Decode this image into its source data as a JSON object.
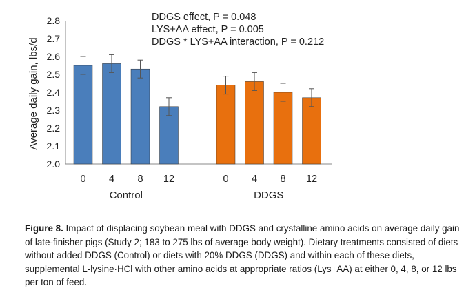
{
  "chart_data": {
    "type": "bar",
    "ylabel": "Average daily gain, lbs/d",
    "ylim": [
      2.0,
      2.8
    ],
    "yticks": [
      "2.0",
      "2.1",
      "2.2",
      "2.3",
      "2.4",
      "2.5",
      "2.6",
      "2.7",
      "2.8"
    ],
    "grid": false,
    "annotations": [
      "DDGS effect, P = 0.048",
      "LYS+AA effect, P = 0.005",
      "DDGS * LYS+AA interaction, P = 0.212"
    ],
    "groups": [
      {
        "name": "Control",
        "color": "#4a7ebb",
        "categories": [
          "0",
          "4",
          "8",
          "12"
        ],
        "values": [
          2.55,
          2.56,
          2.53,
          2.32
        ],
        "errors": [
          0.05,
          0.05,
          0.05,
          0.05
        ]
      },
      {
        "name": "DDGS",
        "color": "#e8700e",
        "categories": [
          "0",
          "4",
          "8",
          "12"
        ],
        "values": [
          2.44,
          2.46,
          2.4,
          2.37
        ],
        "errors": [
          0.05,
          0.05,
          0.05,
          0.05
        ]
      }
    ]
  },
  "caption": {
    "label": "Figure 8.",
    "text": " Impact of displacing soybean meal with DDGS and crystalline amino acids on average daily gain of late-finisher pigs (Study 2; 183 to 275 lbs of average body weight). Dietary treatments consisted of diets without added DDGS (Control) or diets with 20% DDGS (DDGS) and within each of these diets, supplemental L-lysine·HCl with other amino acids at appropriate ratios (Lys+AA) at either 0, 4, 8, or 12 lbs per ton of feed."
  }
}
